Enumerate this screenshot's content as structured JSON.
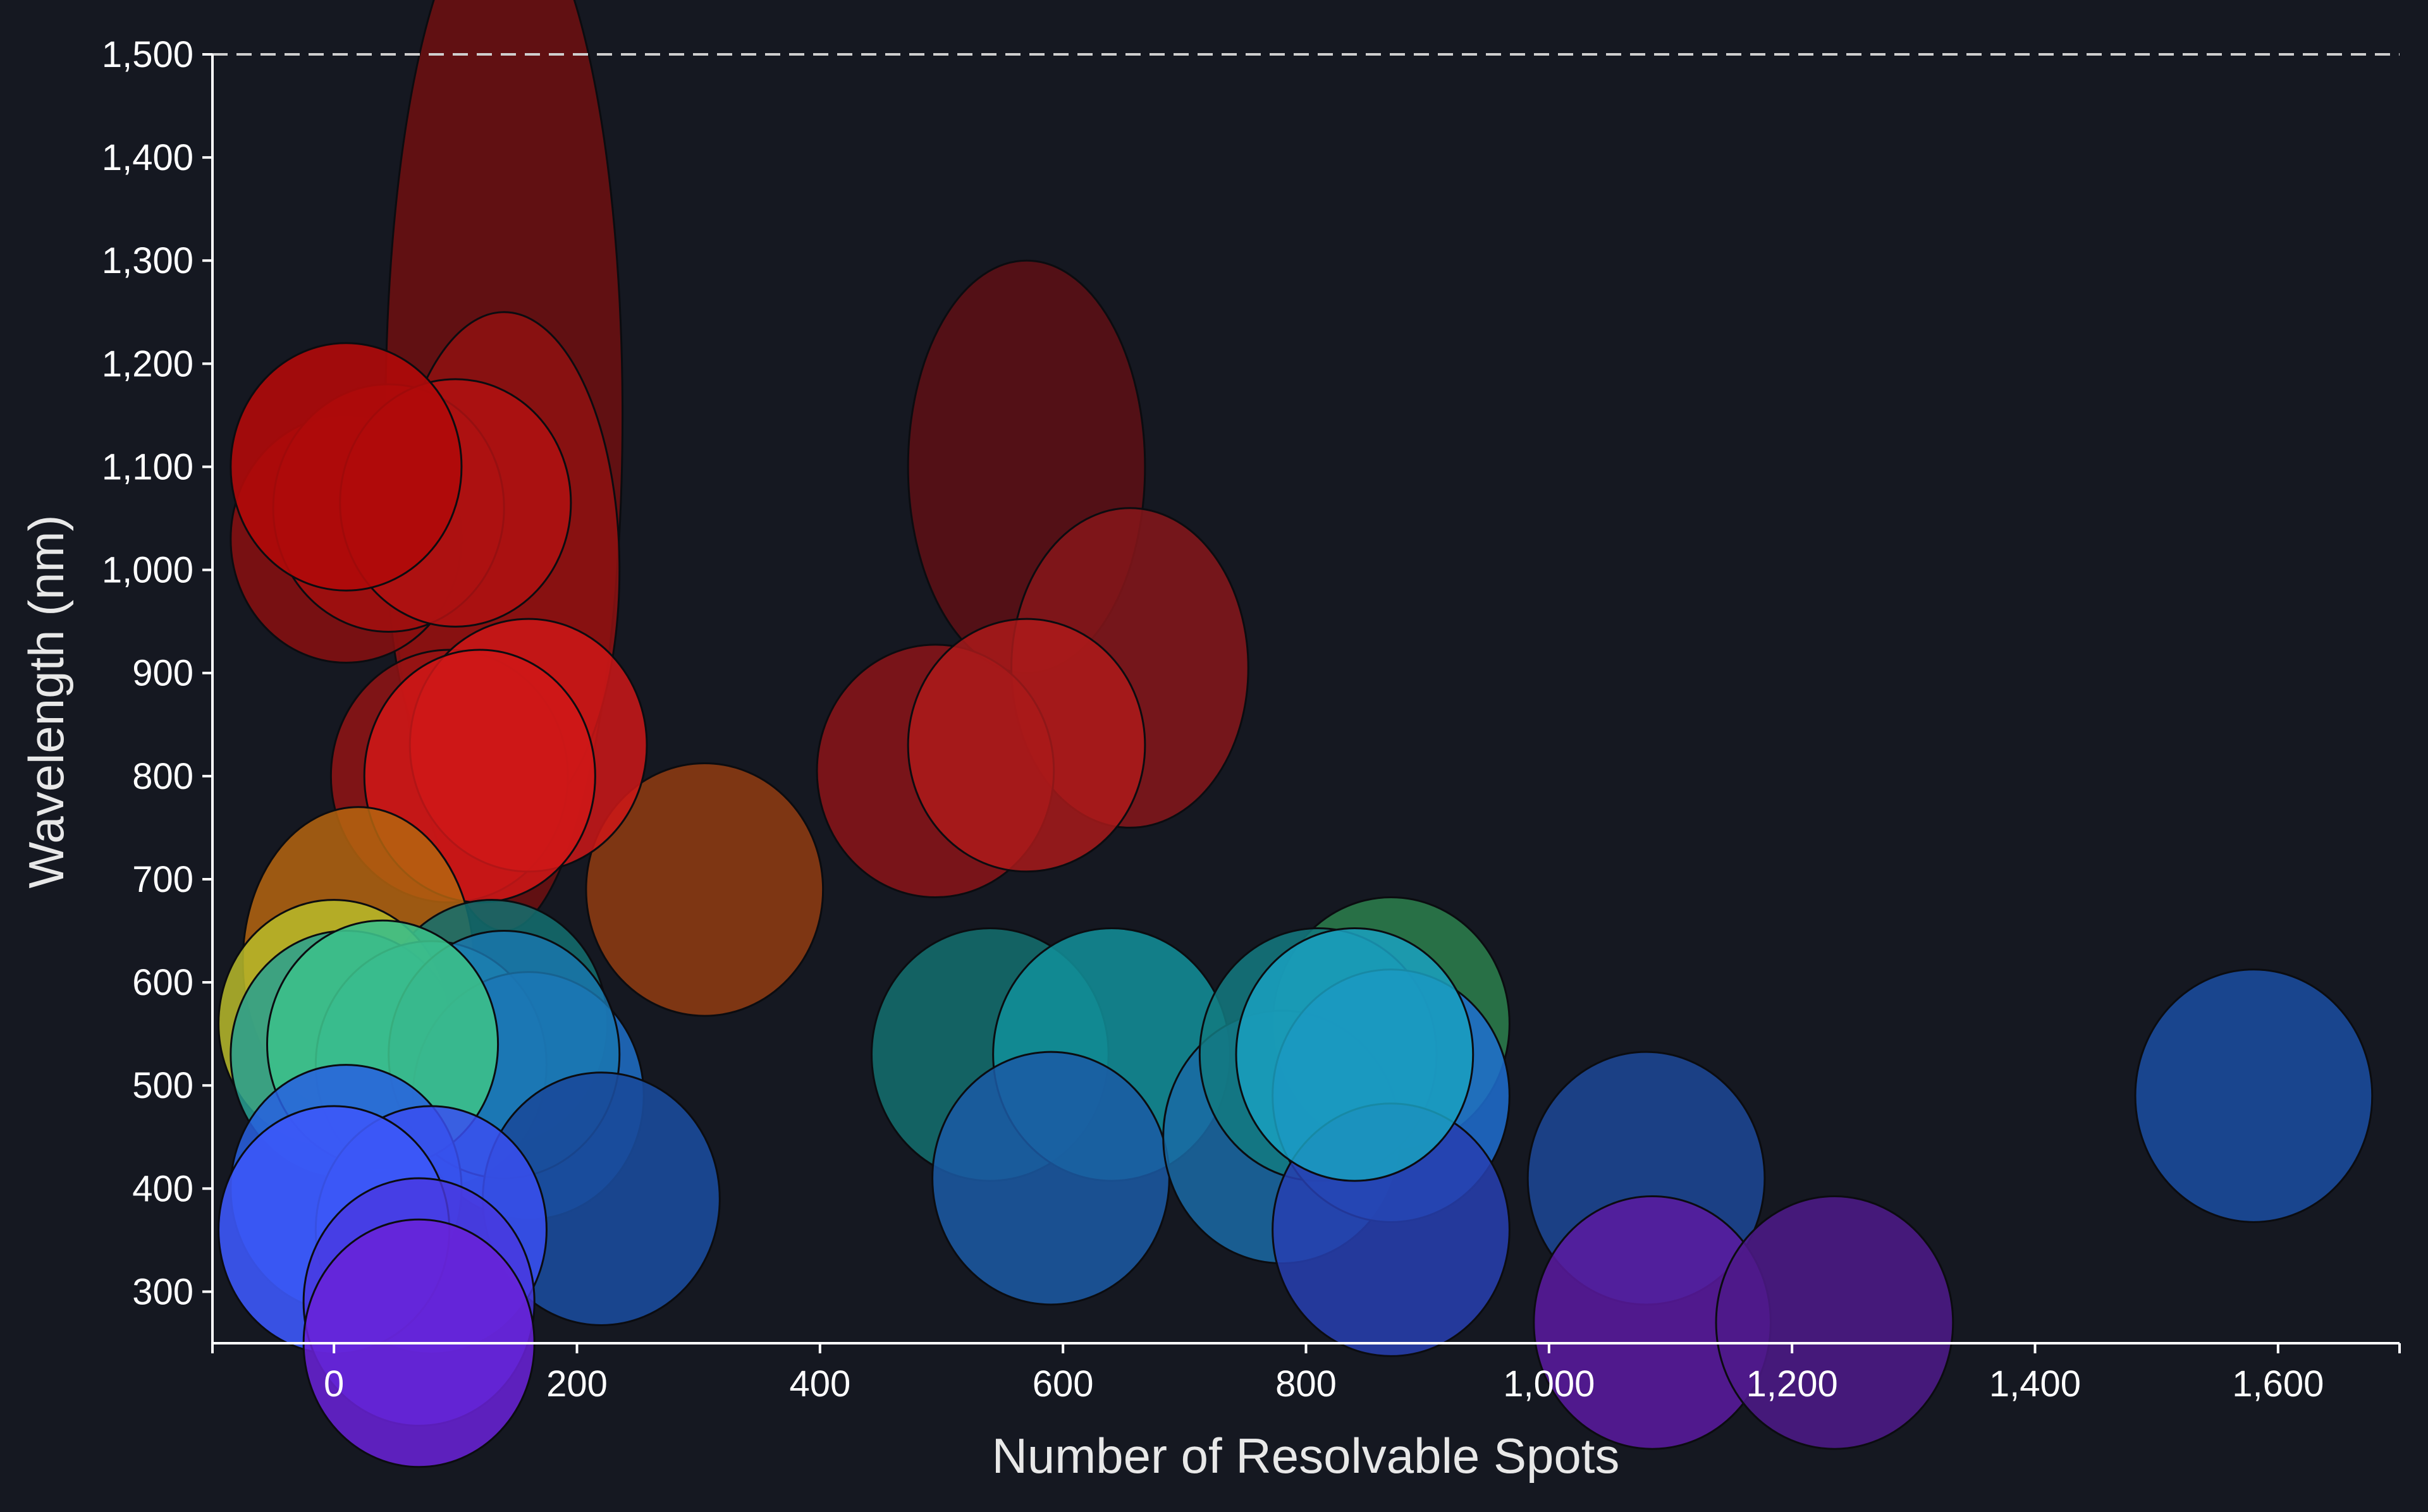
{
  "chart_data": {
    "type": "scatter",
    "xlabel": "Number of Resolvable Spots",
    "ylabel": "Wavelength (nm)",
    "xlim": [
      -100,
      1700
    ],
    "ylim": [
      250,
      1500
    ],
    "x_ticks": [
      0,
      200,
      400,
      600,
      800,
      1000,
      1200,
      1400,
      1600
    ],
    "x_tick_labels": [
      "0",
      "200",
      "400",
      "600",
      "800",
      "1,000",
      "1,200",
      "1,400",
      "1,600"
    ],
    "y_ticks": [
      300,
      400,
      500,
      600,
      700,
      800,
      900,
      1000,
      1100,
      1200,
      1300,
      1400,
      1500
    ],
    "y_tick_labels": [
      "300",
      "400",
      "500",
      "600",
      "700",
      "800",
      "900",
      "1,000",
      "1,100",
      "1,200",
      "1,300",
      "1,400",
      "1,500"
    ],
    "grid": false,
    "reference_line_y": 1500,
    "points": [
      {
        "x": 140,
        "y": 1150,
        "x_span": 195,
        "y_span": 1000,
        "color": "#6e0f0f",
        "opacity": 0.85
      },
      {
        "x": 140,
        "y": 1000,
        "x_span": 190,
        "y_span": 500,
        "color": "#8f1212",
        "opacity": 0.85
      },
      {
        "x": 570,
        "y": 1100,
        "x_span": 195,
        "y_span": 400,
        "color": "#5a0f15",
        "opacity": 0.9
      },
      {
        "x": 655,
        "y": 905,
        "x_span": 195,
        "y_span": 310,
        "color": "#86161a",
        "opacity": 0.85
      },
      {
        "x": 495,
        "y": 805,
        "x_span": 195,
        "y_span": 245,
        "color": "#921418",
        "opacity": 0.8
      },
      {
        "x": 570,
        "y": 830,
        "x_span": 195,
        "y_span": 245,
        "color": "#b01a1a",
        "opacity": 0.8
      },
      {
        "x": 305,
        "y": 690,
        "x_span": 195,
        "y_span": 245,
        "color": "#8a3a12",
        "opacity": 0.9
      },
      {
        "x": 95,
        "y": 800,
        "x_span": 195,
        "y_span": 245,
        "color": "#9a1414",
        "opacity": 0.8
      },
      {
        "x": 160,
        "y": 830,
        "x_span": 195,
        "y_span": 245,
        "color": "#cc1818",
        "opacity": 0.85
      },
      {
        "x": 120,
        "y": 800,
        "x_span": 190,
        "y_span": 245,
        "color": "#d01818",
        "opacity": 0.85
      },
      {
        "x": 10,
        "y": 1030,
        "x_span": 190,
        "y_span": 240,
        "color": "#8a0f0f",
        "opacity": 0.85
      },
      {
        "x": 45,
        "y": 1060,
        "x_span": 190,
        "y_span": 240,
        "color": "#a01010",
        "opacity": 0.9
      },
      {
        "x": 100,
        "y": 1065,
        "x_span": 190,
        "y_span": 240,
        "color": "#b01212",
        "opacity": 0.85
      },
      {
        "x": 10,
        "y": 1100,
        "x_span": 190,
        "y_span": 240,
        "color": "#b00a0a",
        "opacity": 0.9
      },
      {
        "x": 20,
        "y": 620,
        "x_span": 190,
        "y_span": 300,
        "color": "#b5650f",
        "opacity": 0.85
      },
      {
        "x": 130,
        "y": 560,
        "x_span": 190,
        "y_span": 240,
        "color": "#137070",
        "opacity": 0.85
      },
      {
        "x": 0,
        "y": 560,
        "x_span": 190,
        "y_span": 240,
        "color": "#b8bb2a",
        "opacity": 0.85
      },
      {
        "x": 10,
        "y": 530,
        "x_span": 190,
        "y_span": 240,
        "color": "#28a090",
        "opacity": 0.85
      },
      {
        "x": 80,
        "y": 520,
        "x_span": 190,
        "y_span": 240,
        "color": "#22a0b8",
        "opacity": 0.8
      },
      {
        "x": 160,
        "y": 490,
        "x_span": 190,
        "y_span": 240,
        "color": "#1f70c8",
        "opacity": 0.85
      },
      {
        "x": 140,
        "y": 530,
        "x_span": 190,
        "y_span": 240,
        "color": "#1a78b0",
        "opacity": 0.8
      },
      {
        "x": 40,
        "y": 540,
        "x_span": 190,
        "y_span": 240,
        "color": "#3cbf8a",
        "opacity": 0.9
      },
      {
        "x": 220,
        "y": 390,
        "x_span": 195,
        "y_span": 245,
        "color": "#1a4a9a",
        "opacity": 0.9
      },
      {
        "x": 10,
        "y": 400,
        "x_span": 190,
        "y_span": 240,
        "color": "#2860e0",
        "opacity": 0.85
      },
      {
        "x": 80,
        "y": 360,
        "x_span": 190,
        "y_span": 240,
        "color": "#3a4ff0",
        "opacity": 0.85
      },
      {
        "x": 0,
        "y": 360,
        "x_span": 190,
        "y_span": 240,
        "color": "#3c58f8",
        "opacity": 0.9
      },
      {
        "x": 70,
        "y": 290,
        "x_span": 190,
        "y_span": 240,
        "color": "#4a38e0",
        "opacity": 0.8
      },
      {
        "x": 70,
        "y": 250,
        "x_span": 190,
        "y_span": 240,
        "color": "#6a22d8",
        "opacity": 0.85
      },
      {
        "x": 540,
        "y": 530,
        "x_span": 195,
        "y_span": 245,
        "color": "#136a6a",
        "opacity": 0.9
      },
      {
        "x": 640,
        "y": 530,
        "x_span": 195,
        "y_span": 245,
        "color": "#12909a",
        "opacity": 0.85
      },
      {
        "x": 590,
        "y": 410,
        "x_span": 195,
        "y_span": 245,
        "color": "#1b5aa5",
        "opacity": 0.85
      },
      {
        "x": 870,
        "y": 560,
        "x_span": 195,
        "y_span": 245,
        "color": "#2a7a4a",
        "opacity": 0.9
      },
      {
        "x": 780,
        "y": 450,
        "x_span": 195,
        "y_span": 245,
        "color": "#1a6aa5",
        "opacity": 0.85
      },
      {
        "x": 810,
        "y": 530,
        "x_span": 195,
        "y_span": 245,
        "color": "#137a80",
        "opacity": 0.85
      },
      {
        "x": 870,
        "y": 490,
        "x_span": 195,
        "y_span": 245,
        "color": "#1e6ed0",
        "opacity": 0.85
      },
      {
        "x": 870,
        "y": 360,
        "x_span": 195,
        "y_span": 245,
        "color": "#2740b0",
        "opacity": 0.85
      },
      {
        "x": 840,
        "y": 530,
        "x_span": 195,
        "y_span": 245,
        "color": "#1aa0c0",
        "opacity": 0.85
      },
      {
        "x": 1080,
        "y": 410,
        "x_span": 195,
        "y_span": 245,
        "color": "#1c4590",
        "opacity": 0.9
      },
      {
        "x": 1085,
        "y": 270,
        "x_span": 195,
        "y_span": 245,
        "color": "#5a1aa0",
        "opacity": 0.85
      },
      {
        "x": 1235,
        "y": 270,
        "x_span": 195,
        "y_span": 245,
        "color": "#4e1a8a",
        "opacity": 0.85
      },
      {
        "x": 1580,
        "y": 490,
        "x_span": 195,
        "y_span": 245,
        "color": "#1a4a9a",
        "opacity": 0.9
      }
    ]
  }
}
